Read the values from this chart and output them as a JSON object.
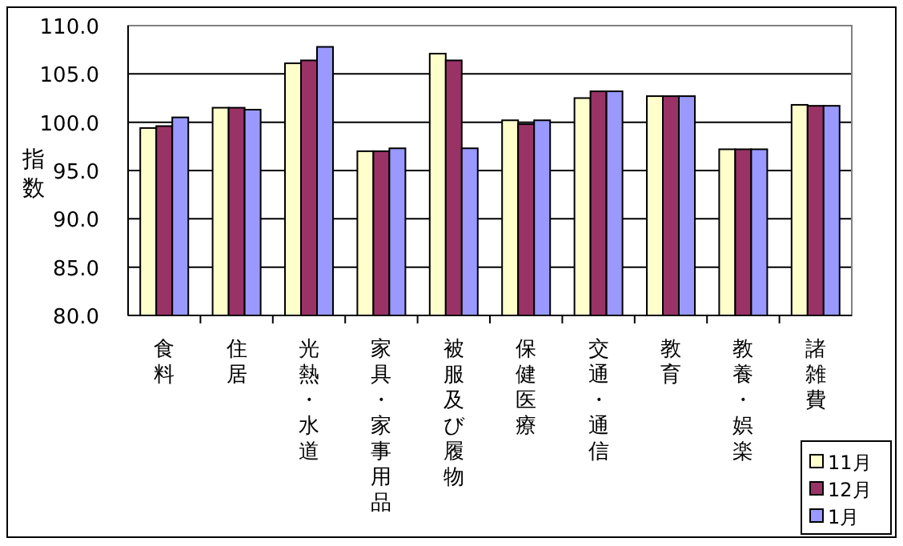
{
  "chart_data": {
    "type": "bar",
    "ylabel": "指数",
    "categories": [
      "食料",
      "住居",
      "光熱・水道",
      "家具・家事用品",
      "被服及び履物",
      "保健医療",
      "交通・通信",
      "教育",
      "教養・娯楽",
      "諸雑費"
    ],
    "series": [
      {
        "name": "11月",
        "color": "#ffffcc",
        "values": [
          99.4,
          101.5,
          106.1,
          97.0,
          107.1,
          100.2,
          102.5,
          102.7,
          97.2,
          101.8
        ]
      },
      {
        "name": "12月",
        "color": "#993366",
        "values": [
          99.6,
          101.5,
          106.4,
          97.0,
          106.4,
          99.8,
          103.2,
          102.7,
          97.2,
          101.7
        ]
      },
      {
        "name": "1月",
        "color": "#9999ff",
        "values": [
          100.5,
          101.3,
          107.8,
          97.3,
          97.3,
          100.2,
          103.2,
          102.7,
          97.2,
          101.7
        ]
      }
    ],
    "ylim": [
      80,
      110
    ],
    "yticks": [
      {
        "value": 80,
        "label": "80.0"
      },
      {
        "value": 85,
        "label": "85.0"
      },
      {
        "value": 90,
        "label": "90.0"
      },
      {
        "value": 95,
        "label": "95.0"
      },
      {
        "value": 100,
        "label": "100.0"
      },
      {
        "value": 105,
        "label": "105.0"
      },
      {
        "value": 110,
        "label": "110.0"
      }
    ],
    "grid": "y",
    "legend": "bottom right"
  }
}
